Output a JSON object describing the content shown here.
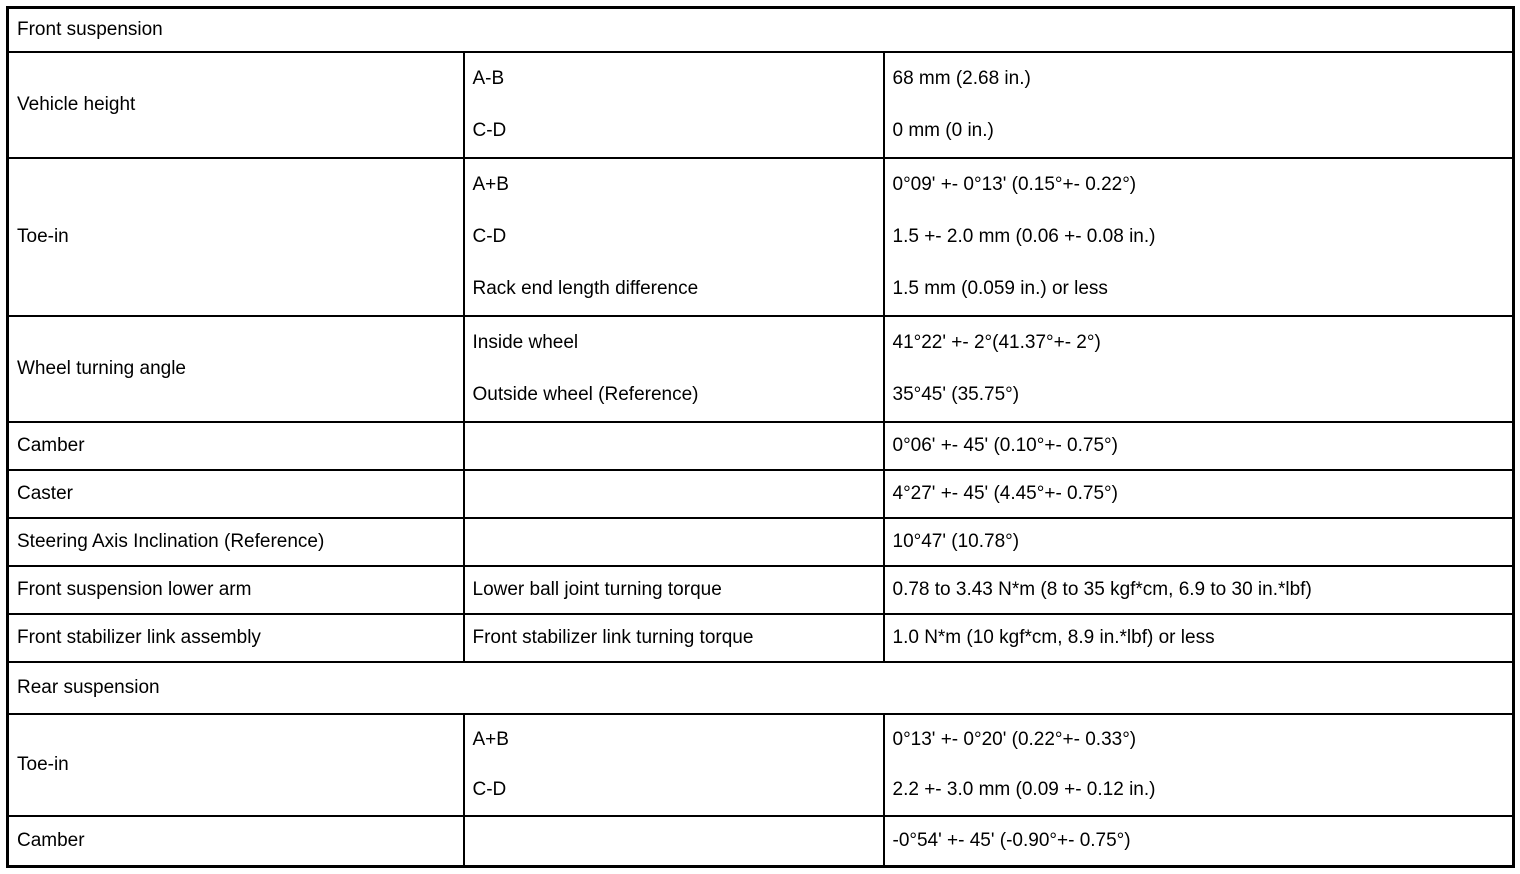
{
  "table": {
    "rows": [
      {
        "type": "section",
        "label": "Front suspension"
      },
      {
        "type": "group",
        "label": "Vehicle height",
        "subs": [
          {
            "param": "A-B",
            "value": "68 mm (2.68 in.)"
          },
          {
            "param": "C-D",
            "value": "0 mm (0 in.)"
          }
        ]
      },
      {
        "type": "group",
        "label": "Toe-in",
        "subs": [
          {
            "param": "A+B",
            "value": "0°09' +- 0°13' (0.15°+- 0.22°)"
          },
          {
            "param": "C-D",
            "value": "1.5 +- 2.0 mm (0.06 +- 0.08 in.)"
          },
          {
            "param": "Rack end length difference",
            "value": "1.5 mm (0.059 in.) or less"
          }
        ]
      },
      {
        "type": "group",
        "label": "Wheel turning angle",
        "subs": [
          {
            "param": "Inside wheel",
            "value": "41°22' +- 2°(41.37°+- 2°)"
          },
          {
            "param": "Outside wheel (Reference)",
            "value": "35°45' (35.75°)"
          }
        ]
      },
      {
        "type": "simple",
        "label": "Camber",
        "subs": [
          {
            "param": "",
            "value": "0°06' +- 45' (0.10°+- 0.75°)"
          }
        ]
      },
      {
        "type": "simple",
        "label": "Caster",
        "subs": [
          {
            "param": "",
            "value": "4°27' +- 45' (4.45°+- 0.75°)"
          }
        ]
      },
      {
        "type": "simple",
        "label": "Steering Axis Inclination (Reference)",
        "subs": [
          {
            "param": "",
            "value": "10°47' (10.78°)"
          }
        ]
      },
      {
        "type": "simple",
        "label": "Front suspension lower arm",
        "subs": [
          {
            "param": "Lower ball joint turning torque",
            "value": "0.78 to 3.43 N*m (8 to 35 kgf*cm, 6.9 to 30 in.*lbf)"
          }
        ]
      },
      {
        "type": "simple",
        "label": "Front stabilizer link assembly",
        "subs": [
          {
            "param": "Front stabilizer link turning torque",
            "value": "1.0 N*m (10 kgf*cm, 8.9 in.*lbf) or less"
          }
        ]
      },
      {
        "type": "section",
        "label": "Rear suspension"
      },
      {
        "type": "group",
        "label": "Toe-in",
        "subs": [
          {
            "param": "A+B",
            "value": "0°13' +- 0°20' (0.22°+- 0.33°)"
          },
          {
            "param": "C-D",
            "value": "2.2 +- 3.0 mm (0.09 +- 0.12 in.)"
          }
        ]
      },
      {
        "type": "simple",
        "label": "Camber",
        "subs": [
          {
            "param": "",
            "value": "-0°54' +- 45' (-0.90°+- 0.75°)"
          }
        ]
      }
    ]
  }
}
